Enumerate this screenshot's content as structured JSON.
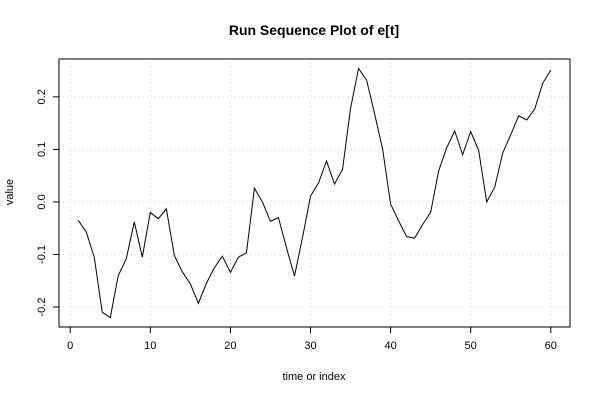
{
  "chart_data": {
    "type": "line",
    "title": "Run Sequence Plot of e[t]",
    "xlabel": "time or index",
    "ylabel": "value",
    "xlim": [
      -1.4,
      62.4
    ],
    "ylim": [
      -0.238,
      0.272
    ],
    "xticks": [
      0,
      10,
      20,
      30,
      40,
      50,
      60
    ],
    "yticks": [
      -0.2,
      -0.1,
      0.0,
      0.1,
      0.2
    ],
    "xtick_labels": [
      "0",
      "10",
      "20",
      "30",
      "40",
      "50",
      "60"
    ],
    "ytick_labels": [
      "-0.2",
      "-0.1",
      "0.0",
      "0.1",
      "0.2"
    ],
    "grid": true,
    "series": [
      {
        "x": [
          1,
          2,
          3,
          4,
          5,
          6,
          7,
          8,
          9,
          10,
          11,
          12,
          13,
          14,
          15,
          16,
          17,
          18,
          19,
          20,
          21,
          22,
          23,
          24,
          25,
          26,
          27,
          28,
          29,
          30,
          31,
          32,
          33,
          34,
          35,
          36,
          37,
          38,
          39,
          40,
          41,
          42,
          43,
          44,
          45,
          46,
          47,
          48,
          49,
          50,
          51,
          52,
          53,
          54,
          55,
          56,
          57,
          58,
          59,
          60
        ],
        "values": [
          -0.035,
          -0.057,
          -0.105,
          -0.21,
          -0.22,
          -0.14,
          -0.108,
          -0.038,
          -0.105,
          -0.02,
          -0.032,
          -0.013,
          -0.102,
          -0.133,
          -0.156,
          -0.193,
          -0.155,
          -0.125,
          -0.103,
          -0.134,
          -0.105,
          -0.097,
          0.026,
          0.0,
          -0.037,
          -0.03,
          -0.087,
          -0.141,
          -0.068,
          0.011,
          0.036,
          0.078,
          0.034,
          0.062,
          0.178,
          0.254,
          0.232,
          0.168,
          0.101,
          -0.004,
          -0.036,
          -0.066,
          -0.069,
          -0.043,
          -0.02,
          0.059,
          0.103,
          0.135,
          0.09,
          0.134,
          0.098,
          0.0,
          0.028,
          0.093,
          0.128,
          0.164,
          0.156,
          0.177,
          0.226,
          0.251
        ]
      }
    ]
  }
}
